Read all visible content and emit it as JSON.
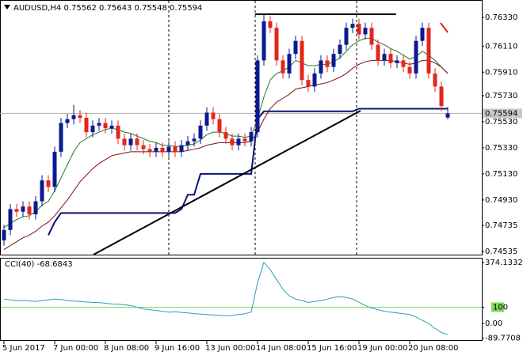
{
  "chart_data": [
    {
      "type": "candlestick",
      "title": "AUDUSD,H4  0.75562 0.75643 0.75548 0.75594",
      "categories": [
        "5 Jun 2017",
        null,
        null,
        null,
        null,
        null,
        null,
        null,
        "7 Jun 00:00",
        null,
        null,
        null,
        null,
        null,
        null,
        null,
        "8 Jun 08:00",
        null,
        null,
        null,
        null,
        null,
        null,
        null,
        "9 Jun 16:00",
        null,
        null,
        null,
        null,
        null,
        null,
        null,
        "13 Jun 00:00",
        null,
        null,
        null,
        null,
        null,
        null,
        null,
        "14 Jun 08:00",
        null,
        null,
        null,
        null,
        null,
        null,
        null,
        "15 Jun 16:00",
        null,
        null,
        null,
        null,
        null,
        null,
        null,
        "19 Jun 00:00",
        null,
        null,
        null,
        null,
        null,
        null,
        null,
        "20 Jun 08:00",
        null,
        null,
        null,
        null,
        null,
        null
      ],
      "open": [
        0.7462,
        0.747,
        0.7486,
        0.7484,
        0.7488,
        0.7482,
        0.7492,
        0.7508,
        0.7503,
        0.753,
        0.7552,
        0.7555,
        0.7558,
        0.7556,
        0.7545,
        0.755,
        0.7552,
        0.7548,
        0.755,
        0.754,
        0.7535,
        0.754,
        0.7535,
        0.7532,
        0.753,
        0.7533,
        0.753,
        0.7534,
        0.753,
        0.7535,
        0.7538,
        0.754,
        0.755,
        0.756,
        0.7555,
        0.7545,
        0.754,
        0.7535,
        0.754,
        0.7538,
        0.7545,
        0.76,
        0.763,
        0.7625,
        0.76,
        0.759,
        0.7605,
        0.7615,
        0.7585,
        0.758,
        0.759,
        0.76,
        0.7595,
        0.7605,
        0.7612,
        0.7625,
        0.7628,
        0.762,
        0.7625,
        0.7612,
        0.76,
        0.7605,
        0.7598,
        0.76,
        0.7595,
        0.759,
        0.7615,
        0.7625,
        0.759,
        0.758,
        0.75562
      ],
      "high": [
        0.7474,
        0.749,
        0.749,
        0.7492,
        0.7492,
        0.7496,
        0.7512,
        0.7512,
        0.7534,
        0.7556,
        0.7559,
        0.7566,
        0.7562,
        0.756,
        0.7554,
        0.7556,
        0.7556,
        0.7554,
        0.7554,
        0.7544,
        0.7544,
        0.7544,
        0.7539,
        0.7536,
        0.7537,
        0.7537,
        0.7538,
        0.7538,
        0.7539,
        0.7542,
        0.7544,
        0.7554,
        0.7564,
        0.7564,
        0.7559,
        0.7549,
        0.7544,
        0.7544,
        0.7544,
        0.7549,
        0.7604,
        0.7636,
        0.7634,
        0.7629,
        0.7604,
        0.7609,
        0.7619,
        0.7619,
        0.7589,
        0.7594,
        0.7604,
        0.7604,
        0.7609,
        0.7616,
        0.7629,
        0.7632,
        0.7632,
        0.7629,
        0.7629,
        0.7616,
        0.7609,
        0.7609,
        0.7604,
        0.7604,
        0.7599,
        0.7619,
        0.7629,
        0.7629,
        0.7594,
        0.7584,
        0.75643
      ],
      "low": [
        0.7458,
        0.7466,
        0.748,
        0.748,
        0.7478,
        0.7478,
        0.7488,
        0.7499,
        0.7499,
        0.7526,
        0.7548,
        0.7551,
        0.7552,
        0.7541,
        0.7541,
        0.7546,
        0.7544,
        0.7544,
        0.7536,
        0.7531,
        0.7531,
        0.7531,
        0.7528,
        0.7526,
        0.7526,
        0.7526,
        0.7526,
        0.7526,
        0.7526,
        0.7531,
        0.7534,
        0.7536,
        0.7546,
        0.7551,
        0.7541,
        0.7536,
        0.7531,
        0.7531,
        0.7534,
        0.7534,
        0.7541,
        0.7596,
        0.7621,
        0.7596,
        0.7586,
        0.7586,
        0.7601,
        0.7581,
        0.7576,
        0.7576,
        0.7586,
        0.7591,
        0.7591,
        0.7601,
        0.7608,
        0.7621,
        0.7616,
        0.7616,
        0.7608,
        0.7596,
        0.7596,
        0.7594,
        0.7594,
        0.7591,
        0.7586,
        0.7586,
        0.7611,
        0.7586,
        0.7576,
        0.7561,
        0.75548
      ],
      "close": [
        0.747,
        0.7486,
        0.7484,
        0.7488,
        0.7482,
        0.7492,
        0.7508,
        0.7503,
        0.753,
        0.7552,
        0.7555,
        0.7558,
        0.7556,
        0.7545,
        0.755,
        0.7552,
        0.7548,
        0.755,
        0.754,
        0.7535,
        0.754,
        0.7535,
        0.7532,
        0.753,
        0.7533,
        0.753,
        0.7534,
        0.753,
        0.7535,
        0.7538,
        0.754,
        0.755,
        0.756,
        0.7555,
        0.7545,
        0.754,
        0.7535,
        0.754,
        0.7538,
        0.7545,
        0.76,
        0.763,
        0.7625,
        0.76,
        0.759,
        0.7605,
        0.7615,
        0.7585,
        0.758,
        0.759,
        0.76,
        0.7595,
        0.7605,
        0.7612,
        0.7625,
        0.7628,
        0.762,
        0.7625,
        0.7612,
        0.76,
        0.7605,
        0.7598,
        0.76,
        0.7595,
        0.759,
        0.7615,
        0.7625,
        0.759,
        0.758,
        0.7565,
        0.75594
      ],
      "up_color": "#0b1a8f",
      "down_color": "#e3261b",
      "overlays": [
        {
          "color": "#1f7a1f",
          "values": [
            0.7472,
            0.7475,
            0.7478,
            0.748,
            0.7481,
            0.7484,
            0.7489,
            0.7492,
            0.75,
            0.751,
            0.752,
            0.753,
            0.7537,
            0.754,
            0.7543,
            0.7545,
            0.7547,
            0.7548,
            0.7547,
            0.7545,
            0.7544,
            0.7542,
            0.754,
            0.7538,
            0.7537,
            0.7535,
            0.7535,
            0.7534,
            0.7534,
            0.7535,
            0.7536,
            0.7539,
            0.7543,
            0.7545,
            0.7545,
            0.7544,
            0.7542,
            0.7542,
            0.7541,
            0.7542,
            0.7555,
            0.7572,
            0.7585,
            0.759,
            0.7592,
            0.7595,
            0.76,
            0.7598,
            0.7596,
            0.7596,
            0.7597,
            0.7597,
            0.7599,
            0.7602,
            0.7607,
            0.7612,
            0.7615,
            0.7617,
            0.7617,
            0.7614,
            0.7612,
            0.7609,
            0.7607,
            0.7604,
            0.7601,
            0.7603,
            0.7607,
            0.7604,
            0.76,
            0.7595,
            0.759
          ]
        },
        {
          "color": "#7a0f0f",
          "values": [
            0.7455,
            0.7458,
            0.7461,
            0.7464,
            0.7466,
            0.7469,
            0.7473,
            0.7476,
            0.7481,
            0.7487,
            0.7493,
            0.75,
            0.7507,
            0.7512,
            0.7517,
            0.7521,
            0.7524,
            0.7527,
            0.7528,
            0.7529,
            0.753,
            0.753,
            0.753,
            0.753,
            0.753,
            0.753,
            0.753,
            0.753,
            0.753,
            0.7531,
            0.7532,
            0.7533,
            0.7535,
            0.7536,
            0.7537,
            0.7537,
            0.7537,
            0.7537,
            0.7537,
            0.7538,
            0.7545,
            0.7555,
            0.7563,
            0.7568,
            0.7571,
            0.7574,
            0.7578,
            0.7579,
            0.758,
            0.7581,
            0.7582,
            0.7583,
            0.7585,
            0.7587,
            0.759,
            0.7594,
            0.7597,
            0.7599,
            0.76,
            0.76,
            0.76,
            0.76,
            0.7599,
            0.7598,
            0.7597,
            0.7598,
            0.76,
            0.76,
            0.7598,
            0.7595,
            0.759
          ]
        },
        {
          "color": "#0a1478",
          "width": 2,
          "values": [
            null,
            null,
            null,
            null,
            null,
            null,
            null,
            0.7466,
            0.7476,
            0.7483,
            0.7483,
            0.7483,
            0.7483,
            0.7483,
            0.7483,
            0.7483,
            0.7483,
            0.7483,
            0.7483,
            0.7483,
            0.7483,
            0.7483,
            0.7483,
            0.7483,
            0.7483,
            0.7483,
            0.7483,
            0.7483,
            0.7486,
            0.7497,
            0.7497,
            0.7513,
            0.7513,
            0.7513,
            0.7513,
            0.7513,
            0.7513,
            0.7513,
            0.7513,
            0.7513,
            0.7555,
            0.7561,
            0.7561,
            0.7561,
            0.7561,
            0.7561,
            0.7561,
            0.7561,
            0.7561,
            0.7561,
            0.7561,
            0.7561,
            0.7561,
            0.7561,
            0.7561,
            0.7561,
            0.7563,
            0.7563,
            0.7563,
            0.7563,
            0.7563,
            0.7563,
            0.7563,
            0.7563,
            0.7563,
            0.7563,
            0.7563,
            0.7563,
            0.7563,
            0.7563,
            0.7563
          ]
        }
      ],
      "last_price": 0.75594,
      "ylim": [
        0.74511,
        0.76433
      ],
      "yticks": [
        {
          "value": 0.7633,
          "label": "0.76330"
        },
        {
          "value": 0.7611,
          "label": "0.76110"
        },
        {
          "value": 0.7591,
          "label": "0.75910"
        },
        {
          "value": 0.7573,
          "label": "0.75730"
        },
        {
          "value": 0.7553,
          "label": "0.75530"
        },
        {
          "value": 0.7533,
          "label": "0.75330"
        },
        {
          "value": 0.7513,
          "label": "0.75130"
        },
        {
          "value": 0.7493,
          "label": "0.74930"
        },
        {
          "value": 0.74735,
          "label": "0.74735"
        },
        {
          "value": 0.74535,
          "label": "0.74535"
        }
      ]
    },
    {
      "type": "line",
      "title": "CCI(40) -68.6843",
      "color": "#2aa0b4",
      "values": [
        150,
        145,
        140,
        142,
        138,
        135,
        140,
        145,
        150,
        148,
        140,
        138,
        135,
        132,
        130,
        128,
        125,
        120,
        118,
        115,
        110,
        100,
        90,
        85,
        80,
        75,
        70,
        72,
        68,
        65,
        60,
        58,
        55,
        52,
        50,
        48,
        50,
        55,
        60,
        70,
        250,
        374.1332,
        330,
        270,
        210,
        170,
        150,
        140,
        130,
        135,
        140,
        150,
        160,
        165,
        160,
        150,
        130,
        110,
        95,
        85,
        75,
        70,
        65,
        60,
        55,
        40,
        20,
        0,
        -30,
        -55,
        -68.6843
      ],
      "levels": [
        100
      ],
      "level_color": "#7ed957",
      "ylim": [
        -101,
        398
      ],
      "yticks": [
        374.1332,
        100,
        {
          "value": 0,
          "label": "0.00"
        },
        -89.7708
      ]
    }
  ]
}
